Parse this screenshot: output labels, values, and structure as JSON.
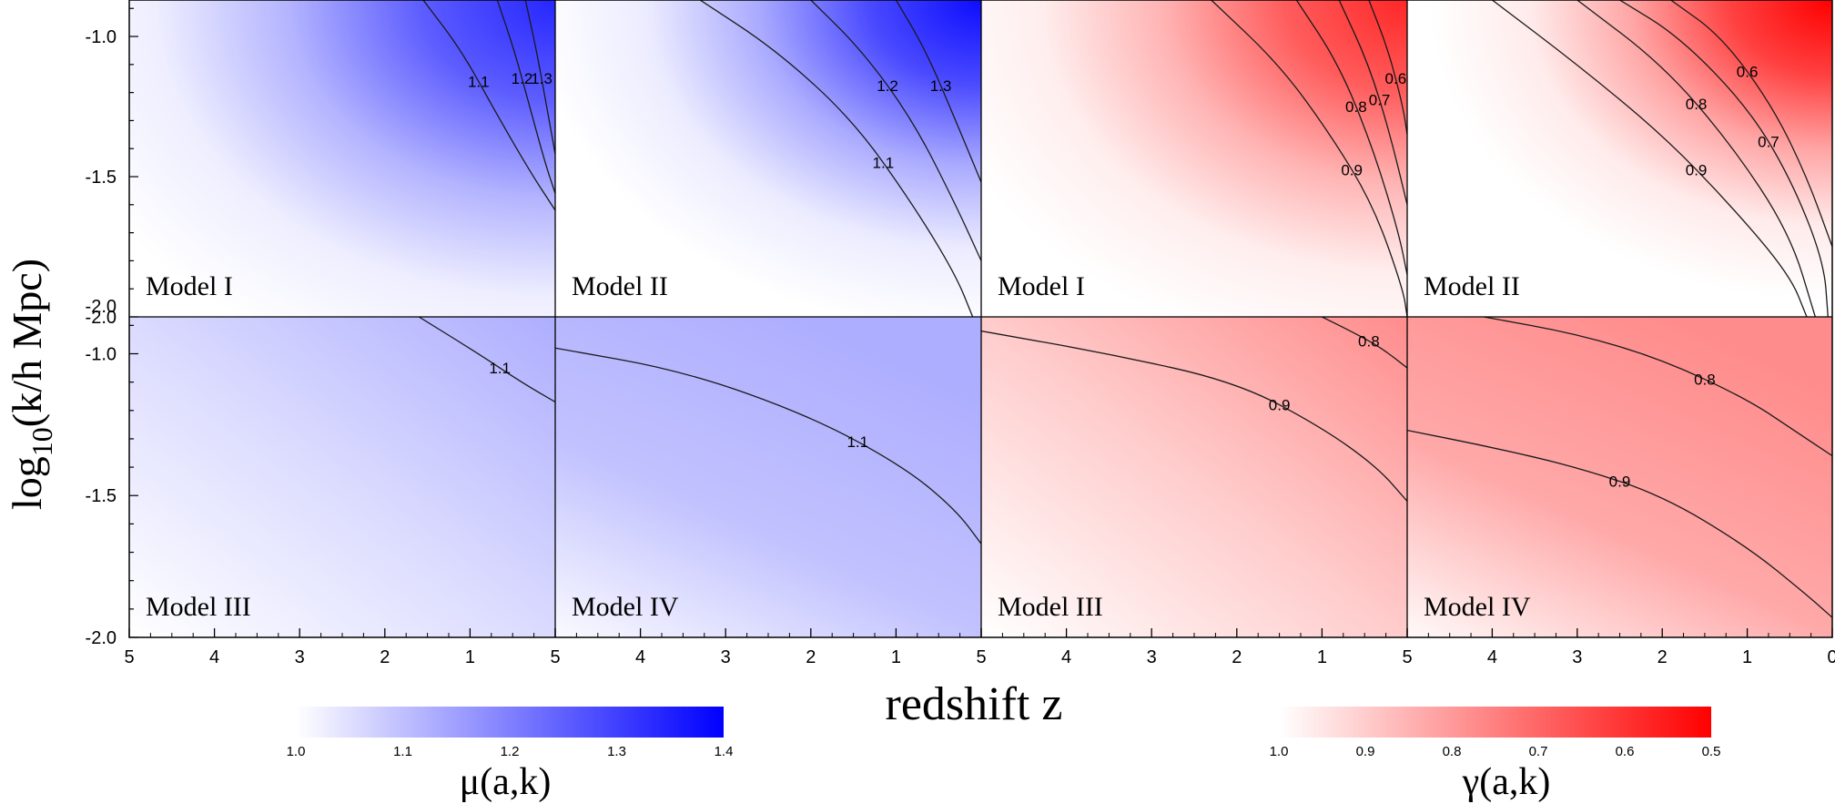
{
  "colors": {
    "mu": "#0000ff",
    "gamma": "#ff0000",
    "contour": "#1a1a1a",
    "axis": "#000000"
  },
  "labels": {
    "ylabel_main": "log",
    "ylabel_sub": "10",
    "ylabel_rest": "(k/h Mpc)",
    "xlabel": "redshift z"
  },
  "axes": {
    "x_ticks": [
      "5",
      "4",
      "3",
      "2",
      "1",
      "5",
      "4",
      "3",
      "2",
      "1",
      "5",
      "4",
      "3",
      "2",
      "1",
      "5",
      "4",
      "3",
      "2",
      "1",
      "0"
    ],
    "y_ticks_top": [
      "-1.0",
      "-1.5",
      "-2.0"
    ],
    "y_ticks_bottom": [
      "-2.0",
      "-1.0",
      "-1.5",
      "-2.0"
    ],
    "xlim": [
      5,
      0
    ],
    "ylim": [
      -2.0,
      -0.87
    ]
  },
  "colorbars": [
    {
      "name": "mu",
      "label": "μ(a,k)",
      "ticks": [
        "1.0",
        "1.1",
        "1.2",
        "1.3",
        "1.4"
      ],
      "range": [
        1.0,
        1.4
      ]
    },
    {
      "name": "gamma",
      "label": "γ(a,k)",
      "ticks": [
        "1.0",
        "0.9",
        "0.8",
        "0.7",
        "0.6",
        "0.5"
      ],
      "range": [
        1.0,
        0.5
      ]
    }
  ],
  "chart_data": [
    {
      "type": "heatmap",
      "quantity": "mu",
      "model": "Model I",
      "contours": [
        {
          "level": 1.1,
          "label": "1.1",
          "points": [
            [
              1.55,
              -0.87
            ],
            [
              1.1,
              -1.05
            ],
            [
              0.7,
              -1.27
            ],
            [
              0.3,
              -1.48
            ],
            [
              0.0,
              -1.62
            ]
          ]
        },
        {
          "level": 1.2,
          "label": "1.2",
          "points": [
            [
              0.68,
              -0.87
            ],
            [
              0.48,
              -1.05
            ],
            [
              0.3,
              -1.25
            ],
            [
              0.12,
              -1.45
            ],
            [
              0.0,
              -1.56
            ]
          ]
        },
        {
          "level": 1.3,
          "label": "1.3",
          "points": [
            [
              0.35,
              -0.87
            ],
            [
              0.22,
              -1.05
            ],
            [
              0.1,
              -1.25
            ],
            [
              0.0,
              -1.42
            ]
          ]
        }
      ]
    },
    {
      "type": "heatmap",
      "quantity": "mu",
      "model": "Model II",
      "contours": [
        {
          "level": 1.1,
          "label": "1.1",
          "points": [
            [
              3.3,
              -0.87
            ],
            [
              2.4,
              -1.05
            ],
            [
              1.5,
              -1.3
            ],
            [
              0.8,
              -1.6
            ],
            [
              0.3,
              -1.85
            ],
            [
              0.1,
              -2.0
            ]
          ]
        },
        {
          "level": 1.2,
          "label": "1.2",
          "points": [
            [
              2.0,
              -0.87
            ],
            [
              1.4,
              -1.05
            ],
            [
              0.8,
              -1.3
            ],
            [
              0.3,
              -1.6
            ],
            [
              0.0,
              -1.8
            ]
          ]
        },
        {
          "level": 1.3,
          "label": "1.3",
          "points": [
            [
              1.0,
              -0.87
            ],
            [
              0.65,
              -1.05
            ],
            [
              0.3,
              -1.3
            ],
            [
              0.0,
              -1.52
            ]
          ]
        }
      ]
    },
    {
      "type": "heatmap",
      "quantity": "gamma",
      "model": "Model I",
      "contours": [
        {
          "level": 0.9,
          "label": "0.9",
          "points": [
            [
              2.3,
              -0.87
            ],
            [
              1.5,
              -1.1
            ],
            [
              0.9,
              -1.35
            ],
            [
              0.4,
              -1.6
            ],
            [
              0.05,
              -1.9
            ],
            [
              0.0,
              -2.0
            ]
          ]
        },
        {
          "level": 0.8,
          "label": "0.8",
          "points": [
            [
              1.3,
              -0.87
            ],
            [
              0.8,
              -1.1
            ],
            [
              0.4,
              -1.4
            ],
            [
              0.1,
              -1.7
            ],
            [
              0.0,
              -1.85
            ]
          ]
        },
        {
          "level": 0.7,
          "label": "0.7",
          "points": [
            [
              0.8,
              -0.87
            ],
            [
              0.45,
              -1.1
            ],
            [
              0.2,
              -1.35
            ],
            [
              0.0,
              -1.6
            ]
          ]
        },
        {
          "level": 0.6,
          "label": "0.6",
          "points": [
            [
              0.45,
              -0.87
            ],
            [
              0.22,
              -1.05
            ],
            [
              0.05,
              -1.25
            ],
            [
              0.0,
              -1.35
            ]
          ]
        }
      ]
    },
    {
      "type": "heatmap",
      "quantity": "gamma",
      "model": "Model II",
      "contours": [
        {
          "level": 0.9,
          "label": "0.9",
          "points": [
            [
              4.0,
              -0.87
            ],
            [
              3.0,
              -1.1
            ],
            [
              2.0,
              -1.35
            ],
            [
              1.2,
              -1.6
            ],
            [
              0.5,
              -1.85
            ],
            [
              0.3,
              -2.0
            ]
          ]
        },
        {
          "level": 0.8,
          "label": "0.8",
          "points": [
            [
              3.0,
              -0.87
            ],
            [
              2.0,
              -1.1
            ],
            [
              1.2,
              -1.38
            ],
            [
              0.5,
              -1.7
            ],
            [
              0.2,
              -2.0
            ]
          ]
        },
        {
          "level": 0.7,
          "label": "0.7",
          "points": [
            [
              2.5,
              -0.87
            ],
            [
              1.8,
              -1.0
            ],
            [
              1.0,
              -1.25
            ],
            [
              0.5,
              -1.5
            ],
            [
              0.1,
              -1.8
            ],
            [
              0.05,
              -2.0
            ]
          ]
        },
        {
          "level": 0.6,
          "label": "0.6",
          "points": [
            [
              1.9,
              -0.87
            ],
            [
              1.3,
              -1.0
            ],
            [
              0.7,
              -1.25
            ],
            [
              0.3,
              -1.5
            ],
            [
              0.0,
              -1.75
            ]
          ]
        }
      ]
    },
    {
      "type": "heatmap",
      "quantity": "mu",
      "model": "Model III",
      "contours": [
        {
          "level": 1.1,
          "label": "1.1",
          "points": [
            [
              1.6,
              -0.87
            ],
            [
              0.9,
              -1.0
            ],
            [
              0.4,
              -1.1
            ],
            [
              0.0,
              -1.17
            ]
          ]
        }
      ]
    },
    {
      "type": "heatmap",
      "quantity": "mu",
      "model": "Model IV",
      "contours": [
        {
          "level": 1.1,
          "label": "1.1",
          "points": [
            [
              5.0,
              -0.98
            ],
            [
              3.5,
              -1.06
            ],
            [
              2.0,
              -1.22
            ],
            [
              0.9,
              -1.4
            ],
            [
              0.3,
              -1.55
            ],
            [
              0.0,
              -1.67
            ]
          ]
        }
      ]
    },
    {
      "type": "heatmap",
      "quantity": "gamma",
      "model": "Model III",
      "contours": [
        {
          "level": 0.9,
          "label": "0.9",
          "points": [
            [
              5.0,
              -0.92
            ],
            [
              3.5,
              -1.0
            ],
            [
              2.0,
              -1.1
            ],
            [
              1.0,
              -1.26
            ],
            [
              0.35,
              -1.4
            ],
            [
              0.0,
              -1.52
            ]
          ]
        },
        {
          "level": 0.8,
          "label": "0.8",
          "points": [
            [
              1.0,
              -0.87
            ],
            [
              0.6,
              -0.93
            ],
            [
              0.3,
              -0.98
            ],
            [
              0.0,
              -1.05
            ]
          ]
        }
      ]
    },
    {
      "type": "heatmap",
      "quantity": "gamma",
      "model": "Model IV",
      "contours": [
        {
          "level": 0.8,
          "label": "0.8",
          "points": [
            [
              4.1,
              -0.87
            ],
            [
              3.0,
              -0.93
            ],
            [
              2.0,
              -1.02
            ],
            [
              1.0,
              -1.16
            ],
            [
              0.4,
              -1.28
            ],
            [
              0.0,
              -1.36
            ]
          ]
        },
        {
          "level": 0.9,
          "label": "0.9",
          "points": [
            [
              5.0,
              -1.27
            ],
            [
              4.0,
              -1.33
            ],
            [
              3.0,
              -1.4
            ],
            [
              2.0,
              -1.5
            ],
            [
              1.0,
              -1.68
            ],
            [
              0.3,
              -1.85
            ],
            [
              0.0,
              -1.93
            ]
          ]
        }
      ]
    }
  ]
}
